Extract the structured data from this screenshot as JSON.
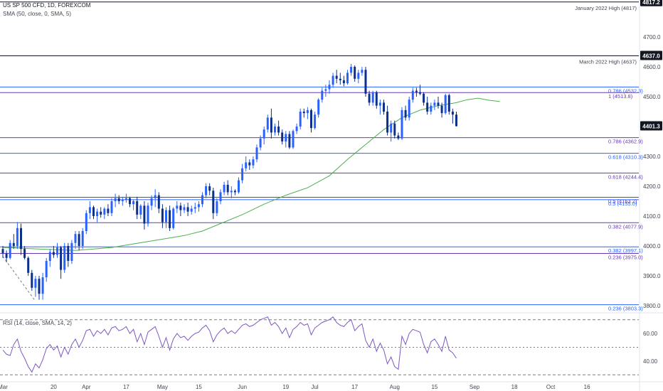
{
  "header": {
    "symbol": "US SP 500 CFD, 1D, FOREXCOM",
    "sma_label": "SMA (50, close, 0, SMA, 5)",
    "rsi_label": "RSI (14, close, SMA, 14, 2)"
  },
  "colors": {
    "bull": "#2962ff",
    "bear": "#0c2f8a",
    "sma": "#4caf50",
    "rsi": "#7e57c2",
    "fib_blue": "#2962ff",
    "fib_purple": "#673ab7",
    "label_box": "#131722",
    "last_price_box": "#131722"
  },
  "chart_data": {
    "type": "candlestick",
    "y_ticks": [
      3800,
      3900,
      4000,
      4100,
      4200,
      4300,
      4400,
      4500,
      4600,
      4700
    ],
    "y_tick_labels": [
      "3800.0",
      "3900.0",
      "4000.0",
      "4100.0",
      "4200.0",
      "4300.0",
      "4400.0",
      "4500.0",
      "4600.0",
      "4700.0"
    ],
    "x_labels": [
      {
        "label": "Mar",
        "index": 0
      },
      {
        "label": "20",
        "index": 14
      },
      {
        "label": "Apr",
        "index": 23
      },
      {
        "label": "17",
        "index": 34
      },
      {
        "label": "May",
        "index": 44
      },
      {
        "label": "15",
        "index": 54
      },
      {
        "label": "Jun",
        "index": 66
      },
      {
        "label": "19",
        "index": 78
      },
      {
        "label": "Jul",
        "index": 86
      },
      {
        "label": "17",
        "index": 97
      },
      {
        "label": "Aug",
        "index": 108
      },
      {
        "label": "15",
        "index": 119
      },
      {
        "label": "Sep",
        "index": 130
      },
      {
        "label": "18",
        "index": 141
      },
      {
        "label": "Oct",
        "index": 151
      },
      {
        "label": "16",
        "index": 161
      }
    ],
    "last_price": {
      "value": 4401.3,
      "label": "4401.3"
    },
    "boxed_levels": [
      {
        "value": 4817.2,
        "label": "4817.2",
        "note": "January 2022 High (4817)"
      },
      {
        "value": 4637.0,
        "label": "4637.0",
        "note": "March 2022 High (4637)"
      }
    ],
    "fib_levels": [
      {
        "value": 4532.3,
        "label": "0.786 (4532.3)",
        "color": "#2962ff"
      },
      {
        "value": 4513.8,
        "label": "1 (4513.8)",
        "color": "#673ab7"
      },
      {
        "value": 4362.9,
        "label": "0.786 (4362.9)",
        "color": "#673ab7"
      },
      {
        "value": 4310.3,
        "label": "0.618 (4310.3)",
        "color": "#2962ff"
      },
      {
        "value": 4244.4,
        "label": "0.618 (4244.4)",
        "color": "#673ab7"
      },
      {
        "value": 4163.2,
        "label": "0.5 (4163.2)",
        "color": "#673ab7"
      },
      {
        "value": 4155.0,
        "label": "0.5 (4155.0)",
        "color": "#2962ff"
      },
      {
        "value": 4077.9,
        "label": "0.382 (4077.9)",
        "color": "#673ab7"
      },
      {
        "value": 3997.1,
        "label": "0.382 (3997.1)",
        "color": "#2962ff"
      },
      {
        "value": 3975.0,
        "label": "0.236 (3975.0)",
        "color": "#673ab7"
      },
      {
        "value": 3803.3,
        "label": "0.236 (3803.3)",
        "color": "#2962ff"
      }
    ],
    "candles": [
      [
        3990,
        4000,
        3960,
        3975
      ],
      [
        3975,
        3985,
        3945,
        3960
      ],
      [
        3960,
        4020,
        3955,
        4010
      ],
      [
        4010,
        4040,
        3990,
        4000
      ],
      [
        4000,
        4080,
        3990,
        4060
      ],
      [
        4060,
        4075,
        3970,
        3990
      ],
      [
        3990,
        4000,
        3955,
        3960
      ],
      [
        3960,
        3965,
        3900,
        3910
      ],
      [
        3910,
        3920,
        3850,
        3860
      ],
      [
        3860,
        3900,
        3830,
        3890
      ],
      [
        3890,
        3900,
        3820,
        3840
      ],
      [
        3840,
        3910,
        3820,
        3895
      ],
      [
        3895,
        3960,
        3880,
        3950
      ],
      [
        3950,
        3990,
        3930,
        3980
      ],
      [
        3980,
        4000,
        3960,
        3970
      ],
      [
        3970,
        4010,
        3960,
        3995
      ],
      [
        3995,
        4000,
        3890,
        3920
      ],
      [
        3920,
        4010,
        3910,
        4000
      ],
      [
        4000,
        4010,
        3930,
        3950
      ],
      [
        3950,
        4020,
        3940,
        4010
      ],
      [
        4010,
        4050,
        3990,
        4040
      ],
      [
        4040,
        4050,
        3985,
        4000
      ],
      [
        4000,
        4060,
        3990,
        4050
      ],
      [
        4050,
        4120,
        4040,
        4110
      ],
      [
        4110,
        4150,
        4090,
        4130
      ],
      [
        4130,
        4135,
        4090,
        4100
      ],
      [
        4100,
        4125,
        4080,
        4115
      ],
      [
        4115,
        4130,
        4095,
        4105
      ],
      [
        4105,
        4130,
        4090,
        4125
      ],
      [
        4125,
        4140,
        4100,
        4110
      ],
      [
        4110,
        4160,
        4100,
        4150
      ],
      [
        4150,
        4175,
        4130,
        4160
      ],
      [
        4160,
        4170,
        4140,
        4150
      ],
      [
        4150,
        4165,
        4135,
        4155
      ],
      [
        4155,
        4175,
        4145,
        4160
      ],
      [
        4160,
        4165,
        4130,
        4140
      ],
      [
        4140,
        4155,
        4120,
        4150
      ],
      [
        4150,
        4165,
        4090,
        4105
      ],
      [
        4105,
        4140,
        4090,
        4135
      ],
      [
        4135,
        4150,
        4055,
        4075
      ],
      [
        4075,
        4145,
        4065,
        4135
      ],
      [
        4135,
        4170,
        4120,
        4160
      ],
      [
        4160,
        4190,
        4130,
        4170
      ],
      [
        4170,
        4180,
        4110,
        4125
      ],
      [
        4125,
        4140,
        4060,
        4080
      ],
      [
        4080,
        4130,
        4060,
        4120
      ],
      [
        4120,
        4135,
        4050,
        4060
      ],
      [
        4060,
        4130,
        4055,
        4125
      ],
      [
        4125,
        4150,
        4110,
        4135
      ],
      [
        4135,
        4145,
        4100,
        4120
      ],
      [
        4120,
        4140,
        4110,
        4130
      ],
      [
        4130,
        4145,
        4100,
        4115
      ],
      [
        4115,
        4135,
        4105,
        4125
      ],
      [
        4125,
        4145,
        4110,
        4130
      ],
      [
        4130,
        4150,
        4115,
        4140
      ],
      [
        4140,
        4180,
        4130,
        4170
      ],
      [
        4170,
        4210,
        4160,
        4200
      ],
      [
        4200,
        4210,
        4170,
        4185
      ],
      [
        4185,
        4195,
        4090,
        4110
      ],
      [
        4110,
        4160,
        4100,
        4150
      ],
      [
        4150,
        4190,
        4140,
        4180
      ],
      [
        4180,
        4215,
        4170,
        4205
      ],
      [
        4205,
        4220,
        4170,
        4180
      ],
      [
        4180,
        4200,
        4160,
        4185
      ],
      [
        4185,
        4190,
        4170,
        4180
      ],
      [
        4180,
        4230,
        4175,
        4220
      ],
      [
        4220,
        4275,
        4210,
        4260
      ],
      [
        4260,
        4300,
        4250,
        4280
      ],
      [
        4280,
        4290,
        4255,
        4270
      ],
      [
        4270,
        4300,
        4260,
        4290
      ],
      [
        4290,
        4340,
        4280,
        4330
      ],
      [
        4330,
        4370,
        4320,
        4360
      ],
      [
        4360,
        4400,
        4340,
        4390
      ],
      [
        4390,
        4440,
        4380,
        4430
      ],
      [
        4430,
        4460,
        4360,
        4380
      ],
      [
        4380,
        4410,
        4370,
        4400
      ],
      [
        4400,
        4420,
        4370,
        4380
      ],
      [
        4380,
        4390,
        4340,
        4350
      ],
      [
        4350,
        4385,
        4330,
        4375
      ],
      [
        4375,
        4385,
        4325,
        4330
      ],
      [
        4330,
        4390,
        4325,
        4385
      ],
      [
        4385,
        4410,
        4375,
        4400
      ],
      [
        4400,
        4460,
        4390,
        4450
      ],
      [
        4450,
        4460,
        4430,
        4445
      ],
      [
        4445,
        4465,
        4425,
        4455
      ],
      [
        4455,
        4460,
        4380,
        4395
      ],
      [
        4395,
        4450,
        4390,
        4440
      ],
      [
        4440,
        4495,
        4430,
        4490
      ],
      [
        4490,
        4530,
        4480,
        4520
      ],
      [
        4520,
        4540,
        4500,
        4525
      ],
      [
        4525,
        4555,
        4510,
        4540
      ],
      [
        4540,
        4580,
        4530,
        4570
      ],
      [
        4570,
        4590,
        4545,
        4560
      ],
      [
        4560,
        4580,
        4540,
        4555
      ],
      [
        4555,
        4570,
        4535,
        4545
      ],
      [
        4545,
        4590,
        4540,
        4580
      ],
      [
        4580,
        4610,
        4570,
        4600
      ],
      [
        4600,
        4605,
        4550,
        4560
      ],
      [
        4560,
        4590,
        4545,
        4580
      ],
      [
        4580,
        4600,
        4570,
        4590
      ],
      [
        4590,
        4600,
        4500,
        4510
      ],
      [
        4510,
        4520,
        4470,
        4480
      ],
      [
        4480,
        4520,
        4470,
        4515
      ],
      [
        4515,
        4520,
        4460,
        4470
      ],
      [
        4470,
        4490,
        4440,
        4480
      ],
      [
        4480,
        4490,
        4440,
        4450
      ],
      [
        4450,
        4470,
        4370,
        4380
      ],
      [
        4380,
        4420,
        4350,
        4410
      ],
      [
        4410,
        4420,
        4360,
        4370
      ],
      [
        4370,
        4380,
        4355,
        4360
      ],
      [
        4360,
        4465,
        4355,
        4455
      ],
      [
        4455,
        4470,
        4420,
        4430
      ],
      [
        4430,
        4500,
        4420,
        4490
      ],
      [
        4490,
        4530,
        4480,
        4520
      ],
      [
        4520,
        4530,
        4500,
        4515
      ],
      [
        4515,
        4540,
        4505,
        4510
      ],
      [
        4510,
        4515,
        4470,
        4480
      ],
      [
        4480,
        4500,
        4440,
        4450
      ],
      [
        4450,
        4480,
        4440,
        4470
      ],
      [
        4470,
        4490,
        4455,
        4480
      ],
      [
        4480,
        4500,
        4460,
        4470
      ],
      [
        4470,
        4480,
        4430,
        4445
      ],
      [
        4445,
        4510,
        4440,
        4505
      ],
      [
        4505,
        4510,
        4440,
        4450
      ],
      [
        4450,
        4460,
        4410,
        4440
      ],
      [
        4440,
        4450,
        4400,
        4401.3
      ]
    ],
    "sma50": [
      [
        0,
        3995
      ],
      [
        10,
        3990
      ],
      [
        20,
        3985
      ],
      [
        30,
        3995
      ],
      [
        40,
        4015
      ],
      [
        50,
        4035
      ],
      [
        55,
        4050
      ],
      [
        60,
        4075
      ],
      [
        66,
        4105
      ],
      [
        72,
        4140
      ],
      [
        78,
        4170
      ],
      [
        84,
        4195
      ],
      [
        90,
        4235
      ],
      [
        95,
        4290
      ],
      [
        100,
        4340
      ],
      [
        105,
        4390
      ],
      [
        110,
        4430
      ],
      [
        115,
        4455
      ],
      [
        120,
        4470
      ],
      [
        125,
        4480
      ],
      [
        128,
        4490
      ],
      [
        131,
        4495
      ],
      [
        134,
        4488
      ],
      [
        137,
        4484
      ]
    ],
    "rsi": {
      "y_ticks": [
        40,
        60
      ],
      "y_tick_labels": [
        "40.00",
        "60.00"
      ],
      "upper_band": 70,
      "lower_band": 30,
      "middle_band": 50,
      "ylim": [
        25,
        75
      ],
      "values": [
        48,
        45,
        44,
        52,
        56,
        47,
        42,
        36,
        32,
        38,
        35,
        41,
        49,
        52,
        48,
        51,
        43,
        50,
        45,
        52,
        56,
        50,
        55,
        62,
        63,
        58,
        62,
        60,
        63,
        59,
        64,
        65,
        62,
        63,
        65,
        60,
        63,
        54,
        60,
        52,
        61,
        63,
        65,
        58,
        50,
        57,
        48,
        56,
        60,
        57,
        58,
        55,
        58,
        60,
        61,
        64,
        66,
        62,
        54,
        59,
        62,
        64,
        60,
        62,
        60,
        63,
        66,
        67,
        65,
        66,
        68,
        70,
        71,
        72,
        66,
        68,
        65,
        60,
        64,
        57,
        63,
        65,
        68,
        66,
        67,
        59,
        64,
        66,
        68,
        69,
        70,
        72,
        68,
        66,
        65,
        68,
        70,
        62,
        65,
        67,
        55,
        50,
        56,
        47,
        53,
        48,
        38,
        43,
        36,
        34,
        58,
        52,
        60,
        63,
        62,
        61,
        52,
        46,
        54,
        56,
        52,
        47,
        58,
        48,
        46,
        42
      ]
    }
  }
}
